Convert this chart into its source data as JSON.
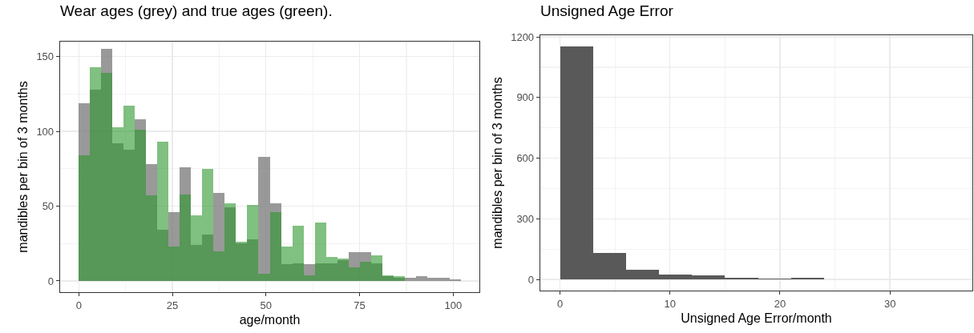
{
  "chart_data": [
    {
      "type": "histogram",
      "title": "Wear ages (grey) and true ages (green).",
      "xlabel": "age/month",
      "ylabel": "mandibles per bin of 3 months",
      "bins": [
        0,
        3,
        6,
        9,
        12,
        15,
        18,
        21,
        24,
        27,
        30,
        33,
        36,
        39,
        42,
        45,
        48,
        51,
        54,
        57,
        60,
        63,
        66,
        69,
        72,
        75,
        78,
        81,
        84,
        87,
        90,
        93,
        96,
        99,
        102
      ],
      "series": [
        {
          "color": "#808080",
          "values": [
            119,
            128,
            155,
            92,
            88,
            108,
            78,
            34,
            46,
            76,
            24,
            31,
            59,
            49,
            25,
            28,
            83,
            52,
            11,
            12,
            11,
            12,
            12,
            14,
            19,
            19,
            12,
            3,
            2,
            2,
            3,
            2,
            2,
            1
          ]
        },
        {
          "color": "#2b962b",
          "values": [
            84,
            143,
            139,
            103,
            117,
            101,
            57,
            93,
            23,
            58,
            44,
            75,
            20,
            52,
            26,
            51,
            5,
            46,
            23,
            37,
            4,
            39,
            16,
            15,
            9,
            13,
            17,
            4,
            3,
            0,
            0,
            0,
            0,
            0
          ]
        }
      ],
      "xlim": [
        -5,
        107
      ],
      "xticks": [
        0,
        25,
        50,
        75,
        100
      ],
      "ylim": [
        -7.5,
        160
      ],
      "yticks": [
        0,
        50,
        100,
        150
      ],
      "grid": true
    },
    {
      "type": "histogram",
      "title": "Unsigned Age Error",
      "xlabel": "Unsigned Age Error/month",
      "ylabel": "mandibles per bin of 3 months",
      "bins": [
        0,
        3,
        6,
        9,
        12,
        15,
        18,
        21,
        24,
        27,
        30,
        33,
        36
      ],
      "series": [
        {
          "color": "#595959",
          "values": [
            1153,
            131,
            46,
            26,
            19,
            7,
            3,
            7,
            1,
            1,
            1,
            1
          ]
        }
      ],
      "xlim": [
        -1.8,
        37.5
      ],
      "xticks": [
        0,
        10,
        20,
        30
      ],
      "ylim": [
        -55,
        1208
      ],
      "yticks": [
        0,
        300,
        600,
        900,
        1200
      ],
      "grid": true
    }
  ]
}
